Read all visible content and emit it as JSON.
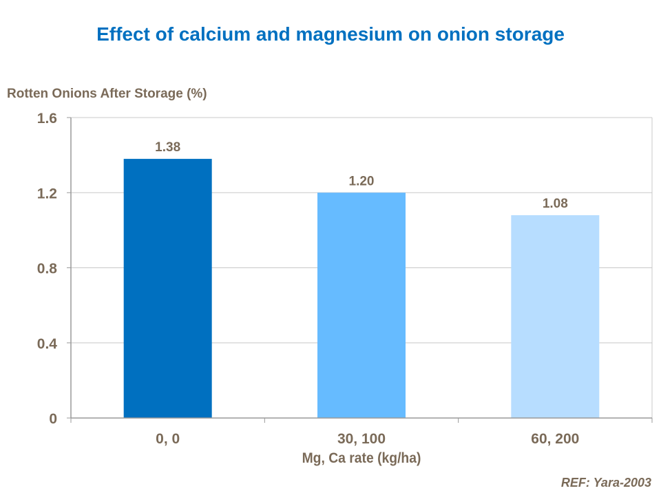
{
  "chart_data": {
    "type": "bar",
    "title": "Effect of calcium and magnesium on onion storage",
    "ylabel": "Rotten Onions After Storage (%)",
    "xlabel": "Mg, Ca rate (kg/ha)",
    "categories": [
      "0, 0",
      "30, 100",
      "60, 200"
    ],
    "values": [
      1.38,
      1.2,
      1.08
    ],
    "data_labels": [
      "1.38",
      "1.20",
      "1.08"
    ],
    "bar_colors": [
      "#0070C0",
      "#66BBFF",
      "#B7DDFF"
    ],
    "ylim": [
      0,
      1.6
    ],
    "yticks": [
      0,
      0.4,
      0.8,
      1.2,
      1.6
    ],
    "ytick_labels": [
      "0",
      "0.4",
      "0.8",
      "1.2",
      "1.6"
    ],
    "grid": true,
    "legend": "none"
  },
  "reference": "REF: Yara-2003"
}
